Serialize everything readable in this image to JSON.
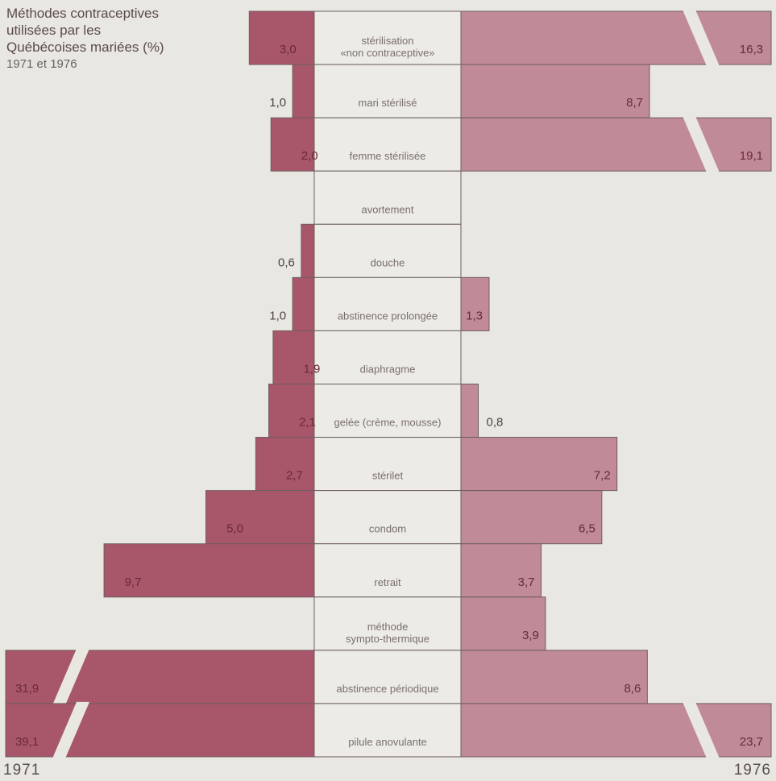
{
  "title": {
    "lines": [
      "Méthodes contraceptives",
      "utilisées par les",
      "Québécoises mariées"
    ],
    "unit": "(%)",
    "years": "1971 et 1976"
  },
  "year_left": "1971",
  "year_right": "1976",
  "colors": {
    "bar_1971": "#a8566a",
    "bar_1976": "#c08a97",
    "center_box": "#ecebe6",
    "outline": "#6e5d62",
    "label_on_bar": "#6a2a3a",
    "label_outside": "#4e4346",
    "method_text": "#7a6e70"
  },
  "chart_data": {
    "type": "bar",
    "orientation": "horizontal",
    "layout": "back-to-back",
    "series": [
      {
        "name": "1971",
        "values": [
          3.0,
          1.0,
          2.0,
          null,
          0.6,
          1.0,
          1.9,
          2.1,
          2.7,
          5.0,
          9.7,
          null,
          31.9,
          39.1
        ]
      },
      {
        "name": "1976",
        "values": [
          16.3,
          8.7,
          19.1,
          null,
          null,
          1.3,
          null,
          0.8,
          7.2,
          6.5,
          3.7,
          3.9,
          8.6,
          23.7
        ]
      }
    ],
    "categories": [
      "stérilisation\n«non contraceptive»",
      "mari stérilisé",
      "femme stérilisée",
      "avortement",
      "douche",
      "abstinence prolongée",
      "diaphragme",
      "gelée (crème, mousse)",
      "stérilet",
      "condom",
      "retrait",
      "méthode\nsympto-thermique",
      "abstinence périodique",
      "pilule anovulante"
    ],
    "labels_1971": [
      "3,0",
      "1,0",
      "2,0",
      "",
      "0,6",
      "1,0",
      "1,9",
      "2,1",
      "2,7",
      "5,0",
      "9,7",
      "",
      "31,9",
      "39,1"
    ],
    "labels_1976": [
      "16,3",
      "8,7",
      "19,1",
      "",
      "",
      "1,3",
      "",
      "0,8",
      "7,2",
      "6,5",
      "3,7",
      "3,9",
      "8,6",
      "23,7"
    ],
    "axis_break_rows_1971": [
      12,
      13
    ],
    "axis_break_rows_1976": [
      0,
      2,
      13
    ],
    "grid": false,
    "legend": "none"
  }
}
